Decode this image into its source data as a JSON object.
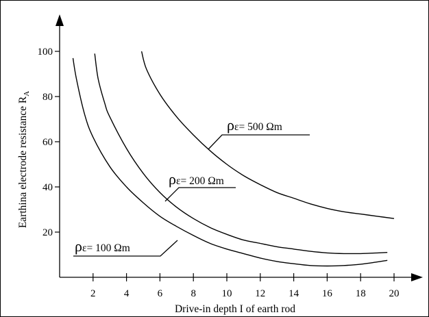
{
  "chart_data": {
    "type": "line",
    "title": "",
    "xlabel": "Drive-in depth I of earth rod",
    "ylabel_main": "Earthina electrode resistance R",
    "ylabel_subscript": "A",
    "xlim": [
      0,
      20
    ],
    "ylim": [
      0,
      100
    ],
    "x_ticks": [
      "2",
      "4",
      "6",
      "8",
      "10",
      "12",
      "14",
      "16",
      "18",
      "20"
    ],
    "y_ticks": [
      "20",
      "40",
      "60",
      "80",
      "100"
    ],
    "grid": false,
    "series": [
      {
        "name": "ρε= 100 Ωm",
        "rho": "ρ",
        "rest": "ε= 100 Ωm",
        "x": [
          0.8,
          1.0,
          1.5,
          2.0,
          3.0,
          4.0,
          5.0,
          6.0,
          7.0,
          8.0,
          9.0,
          10.0,
          11.0,
          12.0,
          13.0,
          14.0,
          15.0,
          16.0,
          17.0,
          18.0,
          19.0,
          19.6
        ],
        "y": [
          97,
          88,
          72,
          62,
          49,
          40,
          33,
          27,
          22.5,
          18.5,
          15,
          12.5,
          10.5,
          8.5,
          7,
          6,
          5.2,
          5,
          5.2,
          5.8,
          6.8,
          7.5
        ]
      },
      {
        "name": "ρε= 200 Ωm",
        "rho": "ρ",
        "rest": "ε= 200 Ωm",
        "x": [
          2.1,
          2.3,
          2.7,
          3.0,
          4.0,
          5.0,
          6.0,
          7.0,
          8.0,
          9.0,
          10.0,
          11.0,
          12.0,
          13.0,
          14.0,
          15.0,
          16.0,
          17.0,
          18.0,
          19.0,
          19.6
        ],
        "y": [
          99,
          88,
          77,
          71,
          57,
          46,
          37.5,
          31,
          26,
          22,
          19,
          16.5,
          15,
          13.5,
          12.5,
          11.5,
          10.8,
          10.5,
          10.5,
          10.8,
          11
        ]
      },
      {
        "name": "ρε= 500 Ωm",
        "rho": "ρ",
        "rest": "ε= 500 Ωm",
        "x": [
          4.9,
          5.2,
          6.0,
          7.0,
          8.0,
          9.0,
          10.0,
          11.0,
          12.0,
          13.0,
          14.0,
          15.0,
          16.0,
          17.0,
          18.0,
          19.0,
          20.0
        ],
        "y": [
          100,
          92,
          81,
          71,
          63,
          56,
          50,
          45,
          41,
          37.5,
          35,
          32.5,
          30.5,
          29,
          28,
          27,
          26
        ]
      }
    ]
  }
}
